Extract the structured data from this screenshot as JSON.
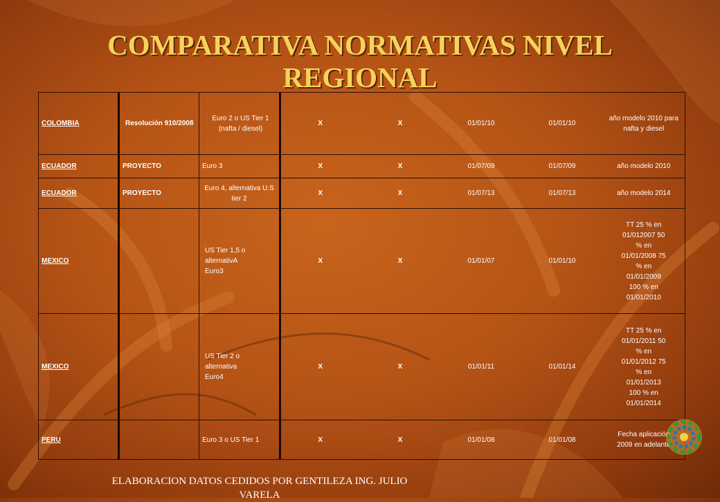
{
  "title": {
    "line1": "COMPARATIVA  NORMATIVAS NIVEL",
    "line2": "REGIONAL"
  },
  "table": {
    "rows": [
      {
        "country": "COLOMBIA",
        "norm": "Resolución 910/2008",
        "standard": "Euro 2 o US Tier 1 (nafta / diesel)",
        "x1": "X",
        "x2": "X",
        "date1": "01/01/10",
        "date2": "01/01/10",
        "obs": "año modelo 2010 para nafta y diesel"
      },
      {
        "country": "ECUADOR",
        "norm": "PROYECTO",
        "standard": "Euro 3",
        "x1": "X",
        "x2": "X",
        "date1": "01/07/09",
        "date2": "01/07/09",
        "obs": "año modelo 2010"
      },
      {
        "country": "ECUADOR",
        "norm": "PROYECTO",
        "standard": "Euro 4, alternativa U.S tier 2",
        "x1": "X",
        "x2": "X",
        "date1": "01/07/13",
        "date2": "01/07/13",
        "obs": "año modelo 2014"
      },
      {
        "country": "MEXICO",
        "norm": "",
        "standard": "US Tier 1,5 o alternativA Euro3",
        "x1": "X",
        "x2": "X",
        "date1": "01/01/07",
        "date2": "01/01/10",
        "obs": "TT 25 % en 01/012007 50 % en 01/01/2008 75 % en 01/01/2009 100 % en 01/01/2010"
      },
      {
        "country": "MEXICO",
        "norm": "",
        "standard": "US Tier 2 o alternativa Euro4",
        "x1": "X",
        "x2": "X",
        "date1": "01/01/11",
        "date2": "01/01/14",
        "obs": "TT 25 % en 01/01/2011 50 % en 01/01/2012 75 % en 01/01/2013 100 % en 01/01/2014"
      },
      {
        "country": "PERU",
        "norm": "",
        "standard": "Euro 3 o US Tier 1",
        "x1": "X",
        "x2": "X",
        "date1": "01/01/08",
        "date2": "01/01/08",
        "obs": "Fecha aplicación 2009 en adelante"
      }
    ]
  },
  "footer": "ELABORACION DATOS CEDIDOS POR GENTILEZA ING. JULIO VARELA",
  "colors": {
    "title": "#f6d25a",
    "background": "#b55316",
    "text": "#ffffff"
  },
  "icons": {
    "logo": "circular-leaf-logo"
  }
}
